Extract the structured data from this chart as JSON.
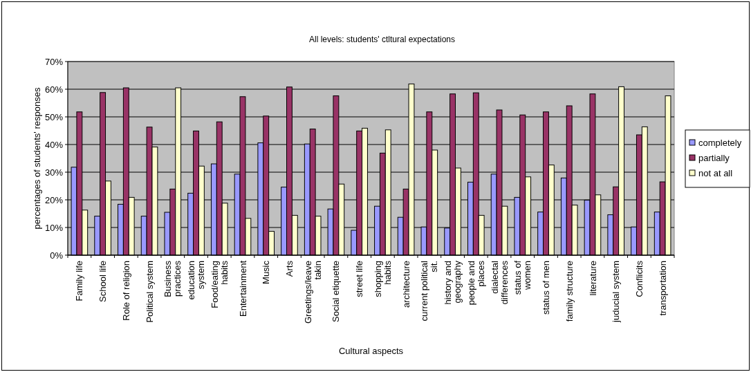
{
  "chart_data": {
    "type": "bar",
    "title": "All levels: students' ctltural expectations",
    "xlabel": "Cultural aspects",
    "ylabel": "percentages of students' responses",
    "categories": [
      "Family life",
      "School life",
      "Role of religion",
      "Political system",
      "Business practices",
      "education system",
      "Food/eating habits",
      "Entertainment",
      "Music",
      "Arts",
      "Greetings/leave takin",
      "Social etiquette",
      "street life",
      "shopping habits",
      "architecture",
      "current political sit.",
      "history and geography",
      "people and places",
      "dialectal differences",
      "status of women",
      "status of men",
      "family structure",
      "literature",
      "juducial system",
      "Conflicits",
      "transportation"
    ],
    "series": [
      {
        "name": "completely",
        "color": "#9999ff",
        "values": [
          31.8,
          14.1,
          18.4,
          14.1,
          15.5,
          22.4,
          33.0,
          29.3,
          40.6,
          24.6,
          40.2,
          16.7,
          9.0,
          17.7,
          13.7,
          10.2,
          9.8,
          26.4,
          29.3,
          20.9,
          15.6,
          27.9,
          19.9,
          14.6,
          10.2,
          15.6
        ]
      },
      {
        "name": "partially",
        "color": "#993366",
        "values": [
          51.8,
          58.8,
          60.5,
          46.3,
          23.9,
          44.9,
          48.2,
          57.3,
          50.3,
          60.8,
          45.6,
          57.6,
          44.9,
          36.9,
          23.9,
          51.8,
          58.3,
          58.7,
          52.5,
          50.7,
          51.8,
          54.0,
          58.3,
          24.7,
          43.5,
          26.5
        ]
      },
      {
        "name": "not at all",
        "color": "#ffffcc",
        "values": [
          16.3,
          26.8,
          20.9,
          39.1,
          60.5,
          32.2,
          18.8,
          13.3,
          8.6,
          14.4,
          14.1,
          25.7,
          45.9,
          45.3,
          61.9,
          38.0,
          31.5,
          14.4,
          17.7,
          28.3,
          32.6,
          18.1,
          21.8,
          60.9,
          46.4,
          57.6
        ]
      }
    ],
    "ylim": [
      0,
      70
    ],
    "yticks": [
      {
        "value": 0,
        "label": "0%"
      },
      {
        "value": 10,
        "label": "10%"
      },
      {
        "value": 20,
        "label": "20%"
      },
      {
        "value": 30,
        "label": "30%"
      },
      {
        "value": 40,
        "label": "40%"
      },
      {
        "value": 50,
        "label": "50%"
      },
      {
        "value": 60,
        "label": "60%"
      },
      {
        "value": 70,
        "label": "70%"
      }
    ],
    "grid": "y",
    "legend": "right"
  }
}
